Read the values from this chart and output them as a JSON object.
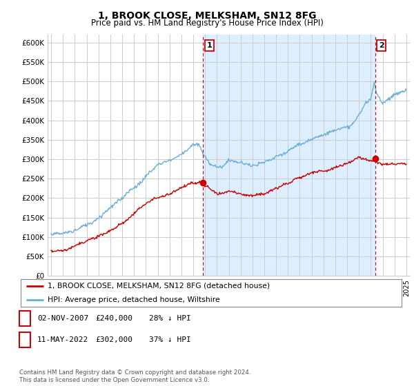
{
  "title": "1, BROOK CLOSE, MELKSHAM, SN12 8FG",
  "subtitle": "Price paid vs. HM Land Registry's House Price Index (HPI)",
  "ylabel_ticks": [
    "£0",
    "£50K",
    "£100K",
    "£150K",
    "£200K",
    "£250K",
    "£300K",
    "£350K",
    "£400K",
    "£450K",
    "£500K",
    "£550K",
    "£600K"
  ],
  "ytick_values": [
    0,
    50000,
    100000,
    150000,
    200000,
    250000,
    300000,
    350000,
    400000,
    450000,
    500000,
    550000,
    600000
  ],
  "xlim_start": 1994.7,
  "xlim_end": 2025.3,
  "ylim": [
    0,
    620000
  ],
  "purchase1": {
    "date_num": 2007.84,
    "price": 240000,
    "label": "1"
  },
  "purchase2": {
    "date_num": 2022.36,
    "price": 302000,
    "label": "2"
  },
  "legend_entries": [
    "1, BROOK CLOSE, MELKSHAM, SN12 8FG (detached house)",
    "HPI: Average price, detached house, Wiltshire"
  ],
  "table_rows": [
    {
      "num": "1",
      "date": "02-NOV-2007",
      "price": "£240,000",
      "pct": "28% ↓ HPI"
    },
    {
      "num": "2",
      "date": "11-MAY-2022",
      "price": "£302,000",
      "pct": "37% ↓ HPI"
    }
  ],
  "footnote": "Contains HM Land Registry data © Crown copyright and database right 2024.\nThis data is licensed under the Open Government Licence v3.0.",
  "hpi_color": "#6baed6",
  "price_color": "#cc0000",
  "vline_color": "#cc0000",
  "shade_color": "#ddeeff",
  "grid_color": "#cccccc",
  "background_color": "#ffffff",
  "chart_bg": "#f0f4fa"
}
